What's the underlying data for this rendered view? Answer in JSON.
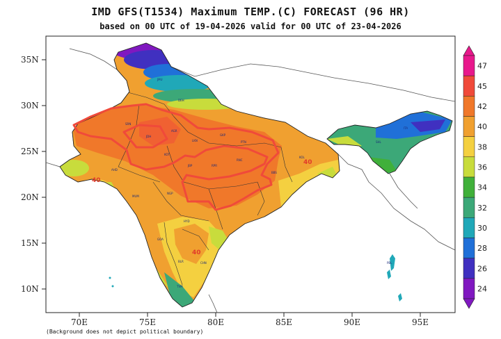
{
  "header": {
    "title": "IMD GFS(T1534) Maximum TEMP.(C) FORECAST (96 HR)",
    "subtitle": "based on 00 UTC of 19-04-2026 valid for 00 UTC of 23-04-2026"
  },
  "axes": {
    "lat_labels": [
      "35N",
      "30N",
      "25N",
      "20N",
      "15N",
      "10N"
    ],
    "lon_labels": [
      "70E",
      "75E",
      "80E",
      "85E",
      "90E",
      "95E"
    ]
  },
  "colorbar": {
    "labels": [
      "47",
      "45",
      "42",
      "40",
      "38",
      "36",
      "34",
      "32",
      "30",
      "28",
      "26",
      "24"
    ],
    "colors": [
      "#e8188c",
      "#f04a3a",
      "#f0782a",
      "#f0a030",
      "#f4d040",
      "#c8dc3c",
      "#40b03a",
      "#3ca878",
      "#20a8b8",
      "#2070d8",
      "#4030c0",
      "#8018c0"
    ]
  },
  "contours": {
    "labels": [
      "40",
      "40",
      "40"
    ]
  },
  "footer": "(Background does not depict political boundary)"
}
